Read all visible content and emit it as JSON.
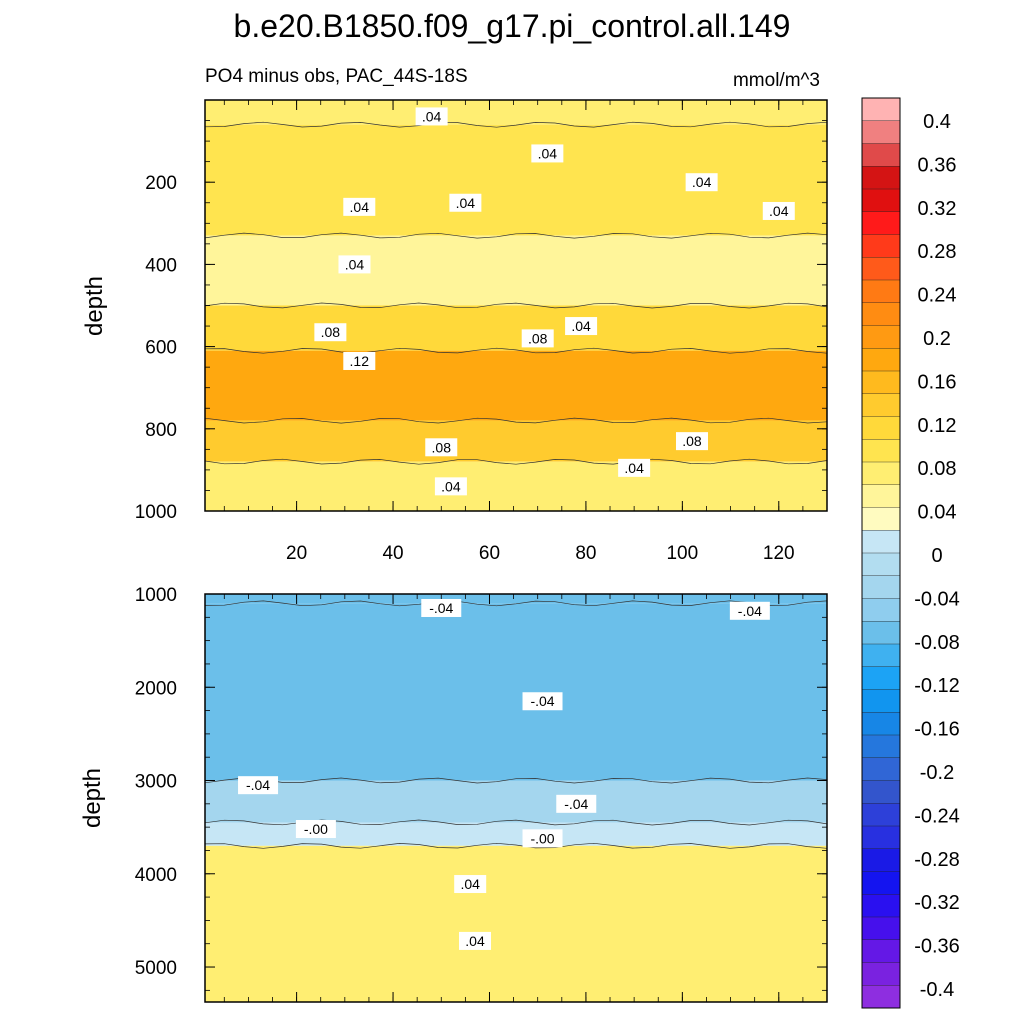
{
  "title": "b.e20.B1850.f09_g17.pi_control.all.149",
  "colors": {
    "background": "#ffffff",
    "positive_light": "#fff9c0",
    "positive_mid": "#ffe14a",
    "positive_dark": "#ffa20a",
    "negative_light": "#c6e6f5",
    "negative_mid": "#a4d6ee",
    "negative_dark": "#86c5ea"
  },
  "chart_data": [
    {
      "type": "heatmap",
      "panel": "upper",
      "subtitle_left": "PO4 minus obs, PAC_44S-18S",
      "subtitle_right": "mmol/m^3",
      "ylabel": "depth",
      "xlabel": "",
      "xlim": [
        1,
        130
      ],
      "ylim": [
        1000,
        0
      ],
      "x_ticks": [
        20,
        40,
        60,
        80,
        100,
        120
      ],
      "y_ticks": [
        200,
        400,
        600,
        800,
        1000
      ],
      "bands": [
        {
          "depth_top": 0,
          "depth_bottom": 60,
          "value": 0.04
        },
        {
          "depth_top": 60,
          "depth_bottom": 330,
          "value": 0.05
        },
        {
          "depth_top": 330,
          "depth_bottom": 500,
          "value": 0.02
        },
        {
          "depth_top": 500,
          "depth_bottom": 610,
          "value": 0.07
        },
        {
          "depth_top": 610,
          "depth_bottom": 780,
          "value": 0.12
        },
        {
          "depth_top": 780,
          "depth_bottom": 880,
          "value": 0.08
        },
        {
          "depth_top": 880,
          "depth_bottom": 1000,
          "value": 0.03
        }
      ],
      "contour_labels": [
        {
          "x": 48,
          "depth": 40,
          "text": ".04"
        },
        {
          "x": 72,
          "depth": 130,
          "text": ".04"
        },
        {
          "x": 104,
          "depth": 200,
          "text": ".04"
        },
        {
          "x": 55,
          "depth": 250,
          "text": ".04"
        },
        {
          "x": 33,
          "depth": 260,
          "text": ".04"
        },
        {
          "x": 120,
          "depth": 270,
          "text": ".04"
        },
        {
          "x": 32,
          "depth": 400,
          "text": ".04"
        },
        {
          "x": 79,
          "depth": 550,
          "text": ".04"
        },
        {
          "x": 27,
          "depth": 565,
          "text": ".08"
        },
        {
          "x": 70,
          "depth": 580,
          "text": ".08"
        },
        {
          "x": 33,
          "depth": 635,
          "text": ".12"
        },
        {
          "x": 50,
          "depth": 845,
          "text": ".08"
        },
        {
          "x": 102,
          "depth": 830,
          "text": ".08"
        },
        {
          "x": 90,
          "depth": 895,
          "text": ".04"
        },
        {
          "x": 52,
          "depth": 940,
          "text": ".04"
        }
      ]
    },
    {
      "type": "heatmap",
      "panel": "lower",
      "subtitle_left": "",
      "ylabel": "depth",
      "xlabel": "",
      "xlim": [
        1,
        130
      ],
      "ylim": [
        5375,
        1000
      ],
      "x_ticks": [
        20,
        40,
        60,
        80,
        100,
        120
      ],
      "y_ticks": [
        1000,
        2000,
        3000,
        4000,
        5000
      ],
      "bands": [
        {
          "depth_top": 1000,
          "depth_bottom": 1100,
          "value": -0.05
        },
        {
          "depth_top": 1100,
          "depth_bottom": 3000,
          "value": -0.05
        },
        {
          "depth_top": 3000,
          "depth_bottom": 3450,
          "value": -0.03
        },
        {
          "depth_top": 3450,
          "depth_bottom": 3700,
          "value": -0.01
        },
        {
          "depth_top": 3700,
          "depth_bottom": 5375,
          "value": 0.03
        }
      ],
      "contour_labels": [
        {
          "x": 50,
          "depth": 1150,
          "text": "-.04"
        },
        {
          "x": 114,
          "depth": 1180,
          "text": "-.04"
        },
        {
          "x": 71,
          "depth": 2150,
          "text": "-.04"
        },
        {
          "x": 12,
          "depth": 3050,
          "text": "-.04"
        },
        {
          "x": 78,
          "depth": 3250,
          "text": "-.04"
        },
        {
          "x": 24,
          "depth": 3520,
          "text": "-.00"
        },
        {
          "x": 71,
          "depth": 3620,
          "text": "-.00"
        },
        {
          "x": 56,
          "depth": 4110,
          "text": ".04"
        },
        {
          "x": 57,
          "depth": 4720,
          "text": ".04"
        }
      ]
    },
    {
      "type": "colorbar",
      "labels": [
        "0.4",
        "0.36",
        "0.32",
        "0.28",
        "0.24",
        "0.2",
        "0.16",
        "0.12",
        "0.08",
        "0.04",
        "0",
        "-0.04",
        "-0.08",
        "-0.12",
        "-0.16",
        "-0.2",
        "-0.24",
        "-0.28",
        "-0.32",
        "-0.36",
        "-0.4"
      ],
      "colors": [
        "#ffb3b3",
        "#f08080",
        "#e04a4a",
        "#d41414",
        "#e01010",
        "#ff1a1a",
        "#ff3a1a",
        "#ff5a1a",
        "#ff7a14",
        "#ff8c12",
        "#ff9a12",
        "#ffa80f",
        "#ffba1e",
        "#ffcb2e",
        "#ffd93a",
        "#ffe44f",
        "#ffee72",
        "#fff59a",
        "#fffbc0",
        "#c6e6f5",
        "#b2ddf0",
        "#a4d6ee",
        "#8fcdee",
        "#6bbfea",
        "#3fb1f0",
        "#1ca3f5",
        "#1195ef",
        "#1786e6",
        "#2577dd",
        "#3066d6",
        "#3355cc",
        "#2d40d9",
        "#2830e0",
        "#1a1ae6",
        "#1414f0",
        "#2a10f0",
        "#4610ec",
        "#6418e6",
        "#7a22e0",
        "#8e2ee0"
      ]
    }
  ]
}
